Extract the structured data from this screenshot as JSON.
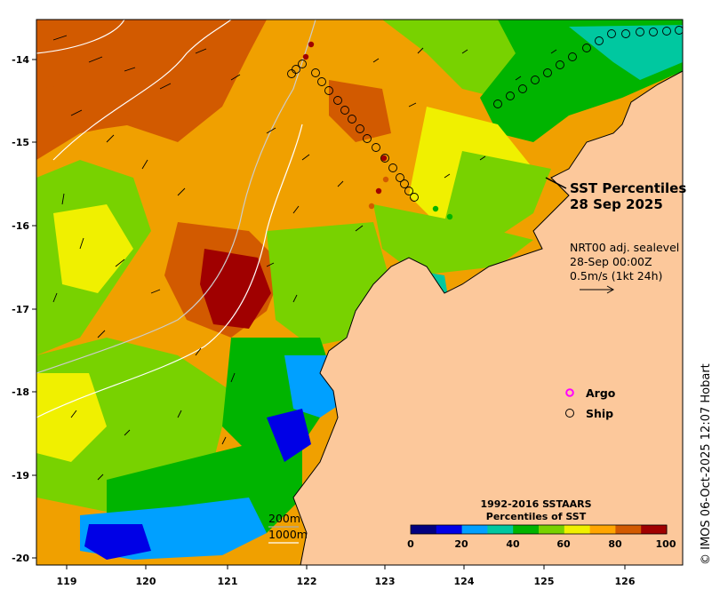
{
  "map": {
    "title_line1": "SST Percentiles",
    "title_line2": "28 Sep 2025",
    "current_info": [
      "NRT00 adj. sealevel",
      "28-Sep 00:00Z",
      "0.5m/s (1kt 24h)"
    ],
    "legend": [
      {
        "label": "Argo",
        "color": "#ff00ff"
      },
      {
        "label": "Ship",
        "color": "#000000"
      }
    ],
    "colorbar_title": [
      "1992-2016 SSTAARS",
      "Percentiles of SST"
    ],
    "colorbar_ticks": [
      "0",
      "20",
      "40",
      "60",
      "80",
      "100"
    ],
    "colorbar_colors": [
      "#000080",
      "#0000e6",
      "#00a0ff",
      "#00c8a0",
      "#00b400",
      "#78d200",
      "#f0f000",
      "#ffa500",
      "#d25a00",
      "#a00000"
    ],
    "isobath_labels": [
      "200m",
      "1000m"
    ],
    "credit": "© IMOS 06-Oct-2025 12:07 Hobart",
    "x_ticks": [
      "119",
      "120",
      "121",
      "122",
      "123",
      "124",
      "125",
      "126"
    ],
    "y_ticks": [
      "-14",
      "-15",
      "-16",
      "-17",
      "-18",
      "-19",
      "-20"
    ],
    "colors": {
      "land": "#fcc89b",
      "coast": "#000000",
      "isobath": "#aaaaaa"
    }
  }
}
